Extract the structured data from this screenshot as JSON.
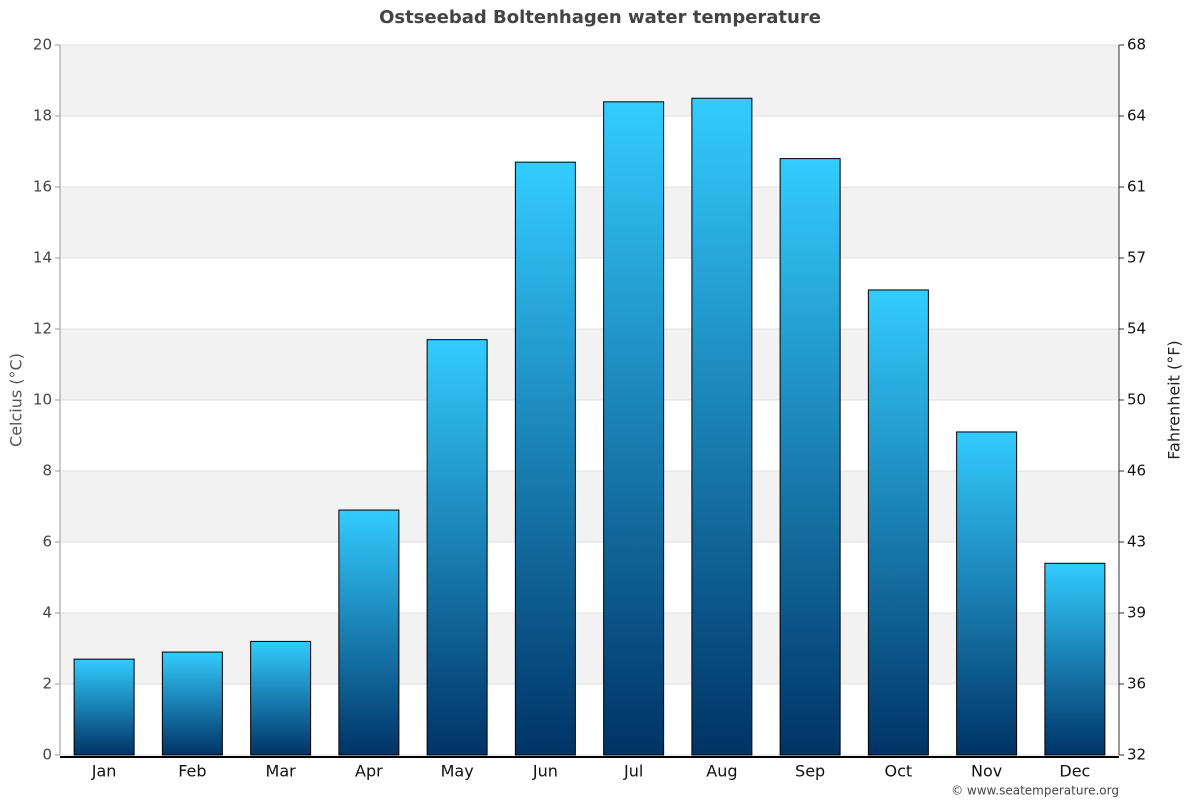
{
  "chart_data": {
    "type": "bar",
    "title": "Ostseebad Boltenhagen water temperature",
    "y_label": "Celcius (°C)",
    "y2_label": "Fahrenheit (°F)",
    "source": "© www.seatemperature.org",
    "categories": [
      "Jan",
      "Feb",
      "Mar",
      "Apr",
      "May",
      "Jun",
      "Jul",
      "Aug",
      "Sep",
      "Oct",
      "Nov",
      "Dec"
    ],
    "values": [
      2.7,
      2.9,
      3.2,
      6.9,
      11.7,
      16.7,
      18.4,
      18.5,
      16.8,
      13.1,
      9.1,
      5.4
    ],
    "gradient": [
      "#33ccff",
      "#003366"
    ],
    "ylim": [
      0,
      20
    ],
    "yticks": [
      0,
      2,
      4,
      6,
      8,
      10,
      12,
      14,
      16,
      18,
      20
    ],
    "y2lim": [
      32,
      68
    ],
    "y2ticks": [
      32,
      {
        "value": 35.6,
        "label": "36"
      },
      {
        "value": 39.2,
        "label": "39"
      },
      {
        "value": 42.8,
        "label": "43"
      },
      {
        "value": 46.4,
        "label": "46"
      },
      50,
      {
        "value": 53.6,
        "label": "54"
      },
      {
        "value": 57.2,
        "label": "57"
      },
      {
        "value": 60.8,
        "label": "61"
      },
      {
        "value": 64.4,
        "label": "64"
      },
      68
    ],
    "grid": true
  }
}
